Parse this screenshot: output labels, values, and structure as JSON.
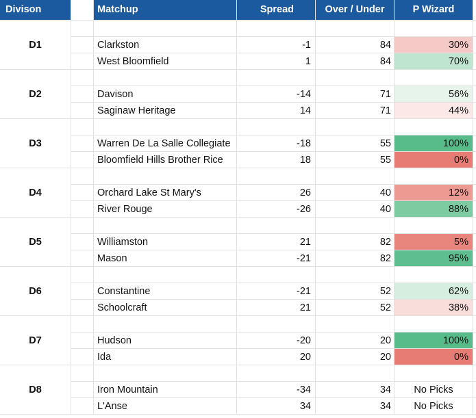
{
  "headers": {
    "division": "Divison",
    "matchup": "Matchup",
    "spread": "Spread",
    "over_under": "Over / Under",
    "p_wizard": "P Wizard"
  },
  "header_color": "#1c5aa0",
  "divisions": [
    {
      "label": "D1",
      "rows": [
        {
          "team": "Clarkston",
          "spread": "-1",
          "ou": "84",
          "wizard": "30%",
          "color": "#f5c9c6"
        },
        {
          "team": "West Bloomfield",
          "spread": "1",
          "ou": "84",
          "wizard": "70%",
          "color": "#bfe5d0"
        }
      ]
    },
    {
      "label": "D2",
      "rows": [
        {
          "team": "Davison",
          "spread": "-14",
          "ou": "71",
          "wizard": "56%",
          "color": "#e6f4ec"
        },
        {
          "team": "Saginaw Heritage",
          "spread": "14",
          "ou": "71",
          "wizard": "44%",
          "color": "#fbe8e7"
        }
      ]
    },
    {
      "label": "D3",
      "rows": [
        {
          "team": "Warren De La Salle Collegiate",
          "spread": "-18",
          "ou": "55",
          "wizard": "100%",
          "color": "#57bb8a"
        },
        {
          "team": "Bloomfield Hills Brother Rice",
          "spread": "18",
          "ou": "55",
          "wizard": "0%",
          "color": "#e67c73"
        }
      ]
    },
    {
      "label": "D4",
      "rows": [
        {
          "team": "Orchard Lake St Mary's",
          "spread": "26",
          "ou": "40",
          "wizard": "12%",
          "color": "#ed9a93"
        },
        {
          "team": "River Rouge",
          "spread": "-26",
          "ou": "40",
          "wizard": "88%",
          "color": "#7ccba1"
        }
      ]
    },
    {
      "label": "D5",
      "rows": [
        {
          "team": "Williamston",
          "spread": "21",
          "ou": "82",
          "wizard": "5%",
          "color": "#e8857c"
        },
        {
          "team": "Mason",
          "spread": "-21",
          "ou": "82",
          "wizard": "95%",
          "color": "#5fbe8f"
        }
      ]
    },
    {
      "label": "D6",
      "rows": [
        {
          "team": "Constantine",
          "spread": "-21",
          "ou": "52",
          "wizard": "62%",
          "color": "#d6eedf"
        },
        {
          "team": "Schoolcraft",
          "spread": "21",
          "ou": "52",
          "wizard": "38%",
          "color": "#f8dddb"
        }
      ]
    },
    {
      "label": "D7",
      "rows": [
        {
          "team": "Hudson",
          "spread": "-20",
          "ou": "20",
          "wizard": "100%",
          "color": "#57bb8a"
        },
        {
          "team": "Ida",
          "spread": "20",
          "ou": "20",
          "wizard": "0%",
          "color": "#e67c73"
        }
      ]
    },
    {
      "label": "D8",
      "rows": [
        {
          "team": "Iron Mountain",
          "spread": "-34",
          "ou": "34",
          "wizard": "No Picks",
          "color": "#ffffff"
        },
        {
          "team": "L'Anse",
          "spread": "34",
          "ou": "34",
          "wizard": "No Picks",
          "color": "#ffffff"
        }
      ]
    }
  ]
}
